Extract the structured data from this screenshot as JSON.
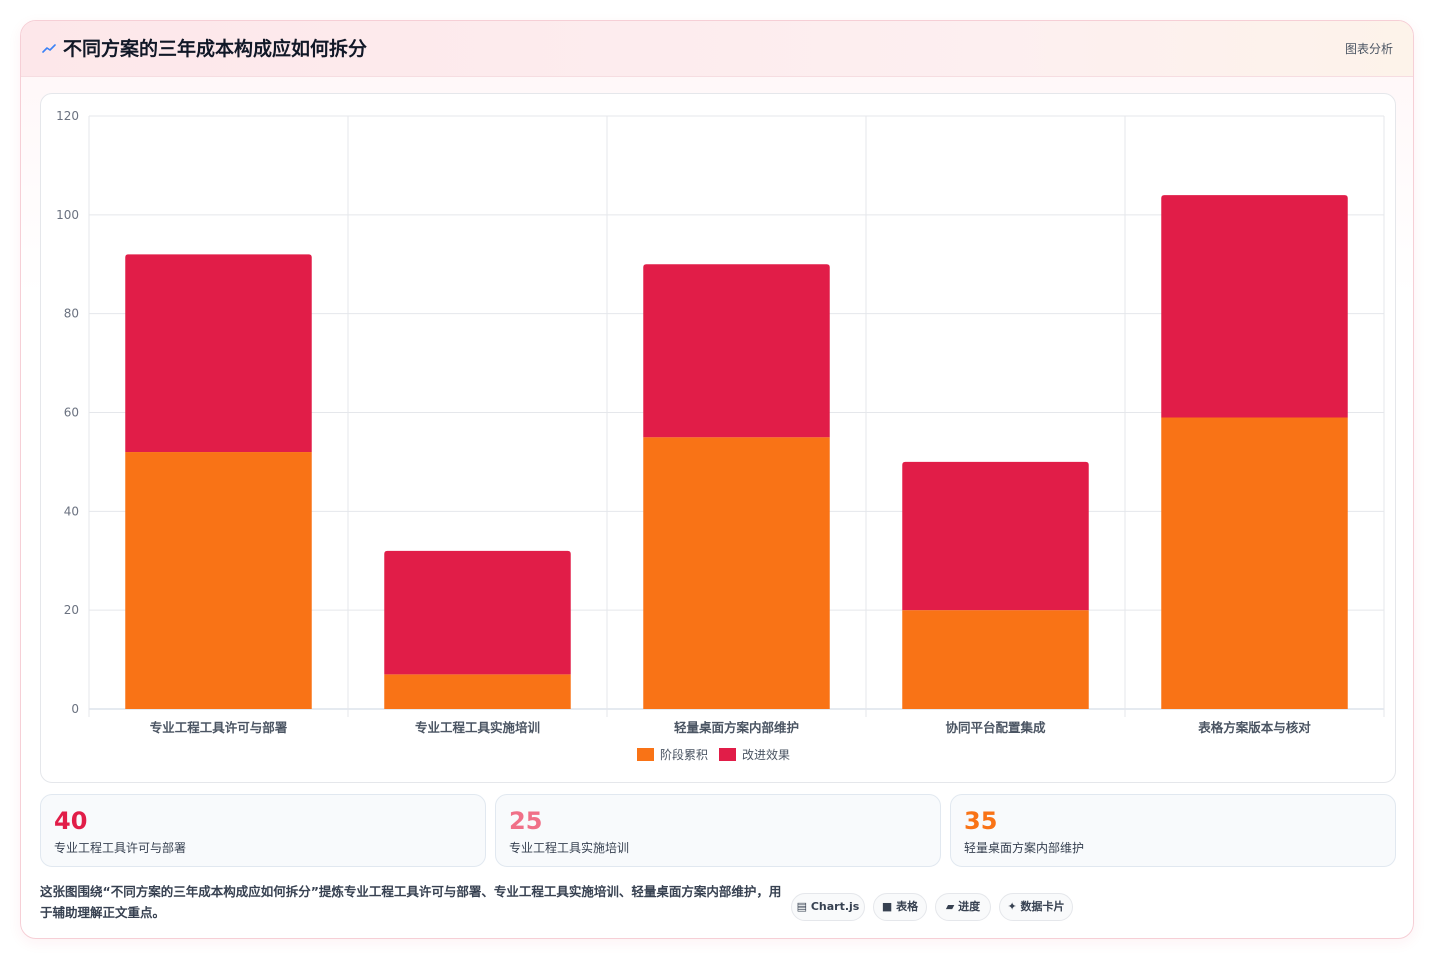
{
  "header": {
    "icon": "trend-line-icon",
    "title": "不同方案的三年成本构成应如何拆分",
    "badge": "图表分析"
  },
  "chart_data": {
    "type": "bar",
    "stacked": true,
    "categories": [
      "专业工程工具许可与部署",
      "专业工程工具实施培训",
      "轻量桌面方案内部维护",
      "协同平台配置集成",
      "表格方案版本与核对"
    ],
    "series": [
      {
        "name": "阶段累积",
        "color": "#f97316",
        "values": [
          52,
          7,
          55,
          20,
          59
        ]
      },
      {
        "name": "改进效果",
        "color": "#e11d48",
        "values": [
          40,
          25,
          35,
          30,
          45
        ]
      }
    ],
    "yticks": [
      "0",
      "20",
      "40",
      "60",
      "80",
      "100",
      "120"
    ],
    "ylim": [
      0,
      120
    ],
    "grid": true,
    "legend": "bottom"
  },
  "stats": [
    {
      "value": "40",
      "label": "专业工程工具许可与部署",
      "color": "#e11d48"
    },
    {
      "value": "25",
      "label": "专业工程工具实施培训",
      "color": "#f07088"
    },
    {
      "value": "35",
      "label": "轻量桌面方案内部维护",
      "color": "#f97316"
    }
  ],
  "footer": {
    "text": "这张图围绕“不同方案的三年成本构成应如何拆分”提炼专业工程工具许可与部署、专业工程工具实施培训、轻量桌面方案内部维护，用于辅助理解正文重点。",
    "tags": [
      "▤ Chart.js",
      "■ 表格",
      "▰ 进度",
      "✦ 数据卡片"
    ]
  }
}
